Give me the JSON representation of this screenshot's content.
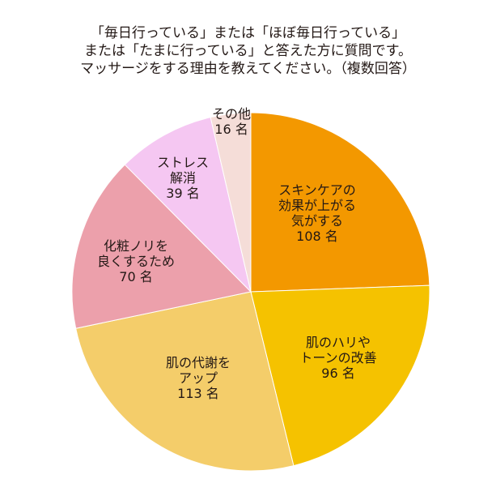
{
  "title_lines": [
    "「毎日行っている」または「ほぼ毎日行っている」",
    "または「たまに行っている」と答えた方に質問です。",
    "マッサージをする理由を教えてください。（複数回答）"
  ],
  "chart_data": {
    "type": "pie",
    "title": "「毎日行っている」または「ほぼ毎日行っている」または「たまに行っている」と答えた方に質問です。マッサージをする理由を教えてください。（複数回答）",
    "unit": "名",
    "start_angle": "12 o'clock, clockwise",
    "total": 442,
    "slices": [
      {
        "label": "スキンケアの効果が上がる気がする",
        "label_lines": [
          "スキンケアの",
          "効果が上がる",
          "気がする"
        ],
        "value": 108,
        "value_text": "108 名",
        "color": "#F39800"
      },
      {
        "label": "肌のハリやトーンの改善",
        "label_lines": [
          "肌のハリや",
          "トーンの改善"
        ],
        "value": 96,
        "value_text": "96 名",
        "color": "#F5C200"
      },
      {
        "label": "肌の代謝をアップ",
        "label_lines": [
          "肌の代謝を",
          "アップ"
        ],
        "value": 113,
        "value_text": "113 名",
        "color": "#F4CD6A"
      },
      {
        "label": "化粧ノリを良くするため",
        "label_lines": [
          "化粧ノリを",
          "良くするため"
        ],
        "value": 70,
        "value_text": "70 名",
        "color": "#ECA0AB"
      },
      {
        "label": "ストレス解消",
        "label_lines": [
          "ストレス",
          "解消"
        ],
        "value": 39,
        "value_text": "39 名",
        "color": "#F5C7F2"
      },
      {
        "label": "その他",
        "label_lines": [
          "その他"
        ],
        "value": 16,
        "value_text": "16 名",
        "color": "#F5DDD8"
      }
    ]
  }
}
